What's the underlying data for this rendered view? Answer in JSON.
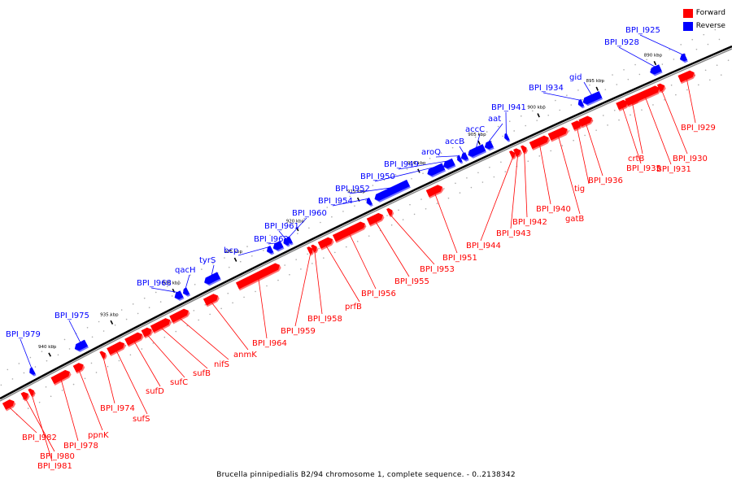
{
  "legend": {
    "forward_label": "Forward",
    "reverse_label": "Reverse",
    "forward_color": "#ff0000",
    "reverse_color": "#0000ff"
  },
  "caption": "Brucella pinnipedialis B2/94 chromosome 1, complete sequence. - 0..2138342",
  "ticks": [
    "940 kbp",
    "935 kbp",
    "930 kbp",
    "925 kbp",
    "920 kbp",
    "915 kbp",
    "910 kbp",
    "905 kbp",
    "900 kbp",
    "895 kbp",
    "890 kbp"
  ],
  "reverse_genes": [
    "BPI_I979",
    "BPI_I975",
    "BPI_I968",
    "qacH",
    "tyrS",
    "bcp",
    "BPI_I962",
    "BPI_I961",
    "BPI_I960",
    "BPI_I954",
    "BPI_I952",
    "BPI_I950",
    "BPI_I949",
    "aroQ",
    "accB",
    "accC",
    "aat",
    "BPI_I941",
    "BPI_I934",
    "gid",
    "BPI_I928",
    "BPI_I925"
  ],
  "forward_genes": [
    "BPI_I982",
    "BPI_I980",
    "BPI_I981",
    "BPI_I978",
    "ppnK",
    "BPI_I974",
    "sufS",
    "sufD",
    "sufC",
    "sufB",
    "nifS",
    "anmK",
    "BPI_I964",
    "BPI_I959",
    "BPI_I958",
    "prfB",
    "BPI_I956",
    "BPI_I955",
    "BPI_I953",
    "BPI_I951",
    "BPI_I944",
    "BPI_I943",
    "BPI_I942",
    "BPI_I940",
    "gatB",
    "tig",
    "BPI_I936",
    "BPI_I935",
    "crtB",
    "BPI_I931",
    "BPI_I930",
    "BPI_I929"
  ]
}
